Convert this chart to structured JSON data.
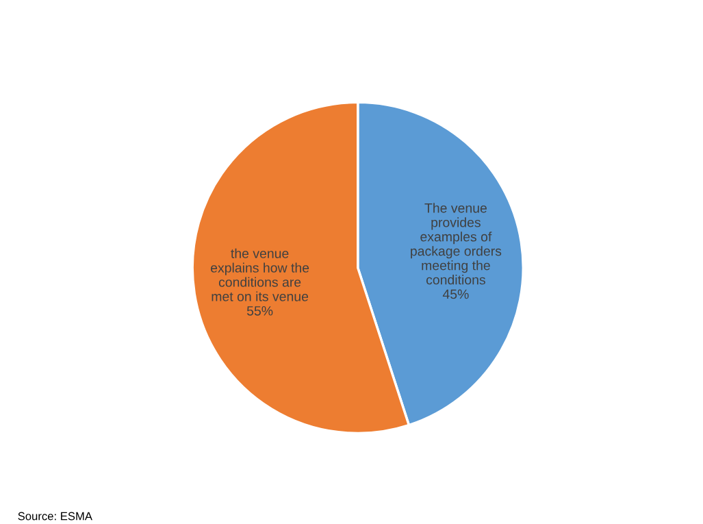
{
  "chart_data": {
    "type": "pie",
    "categories": [
      "The venue\nprovides\nexamples of\npackage orders\nmeeting the\nconditions",
      "the venue\nexplains how the\nconditions are\nmet on its venue"
    ],
    "values": [
      45,
      55
    ],
    "colors": [
      "#5b9bd5",
      "#ed7d31"
    ],
    "value_labels": [
      "45%",
      "55%"
    ],
    "legend": false,
    "annotations": [
      "Source: ESMA"
    ]
  }
}
